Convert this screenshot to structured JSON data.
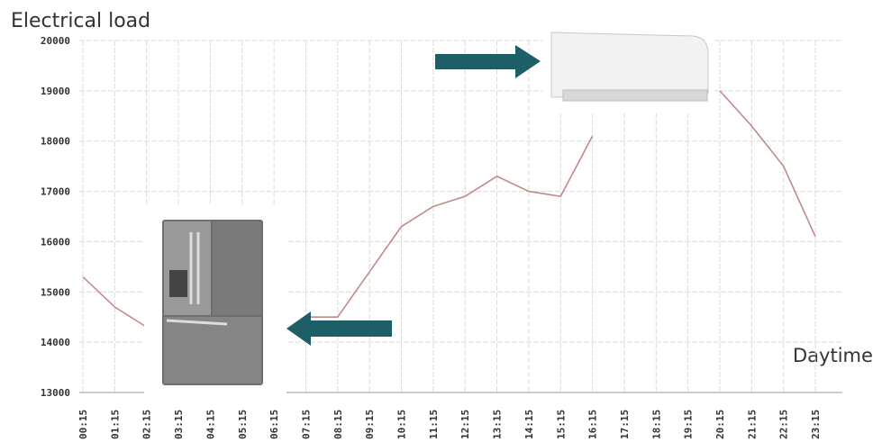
{
  "chart_data": {
    "type": "line",
    "title": "Electrical load",
    "x_label": "Daytime",
    "categories": [
      "00:15",
      "01:15",
      "02:15",
      "03:15",
      "04:15",
      "05:15",
      "06:15",
      "07:15",
      "08:15",
      "09:15",
      "10:15",
      "11:15",
      "12:15",
      "13:15",
      "14:15",
      "15:15",
      "16:15",
      "17:15",
      "18:15",
      "19:15",
      "20:15",
      "21:15",
      "22:15",
      "23:15"
    ],
    "series": [
      {
        "name": "Electrical load",
        "color": "#c08a88",
        "values": [
          15300,
          14700,
          14300,
          null,
          null,
          null,
          null,
          14500,
          14500,
          15400,
          16300,
          16700,
          16900,
          17300,
          17000,
          16900,
          18100,
          null,
          null,
          null,
          19000,
          18300,
          17500,
          16100
        ]
      }
    ],
    "ylim": [
      13000,
      20000
    ],
    "yticks": [
      13000,
      14000,
      15000,
      16000,
      17000,
      18000,
      19000,
      20000
    ],
    "grid": true
  }
}
